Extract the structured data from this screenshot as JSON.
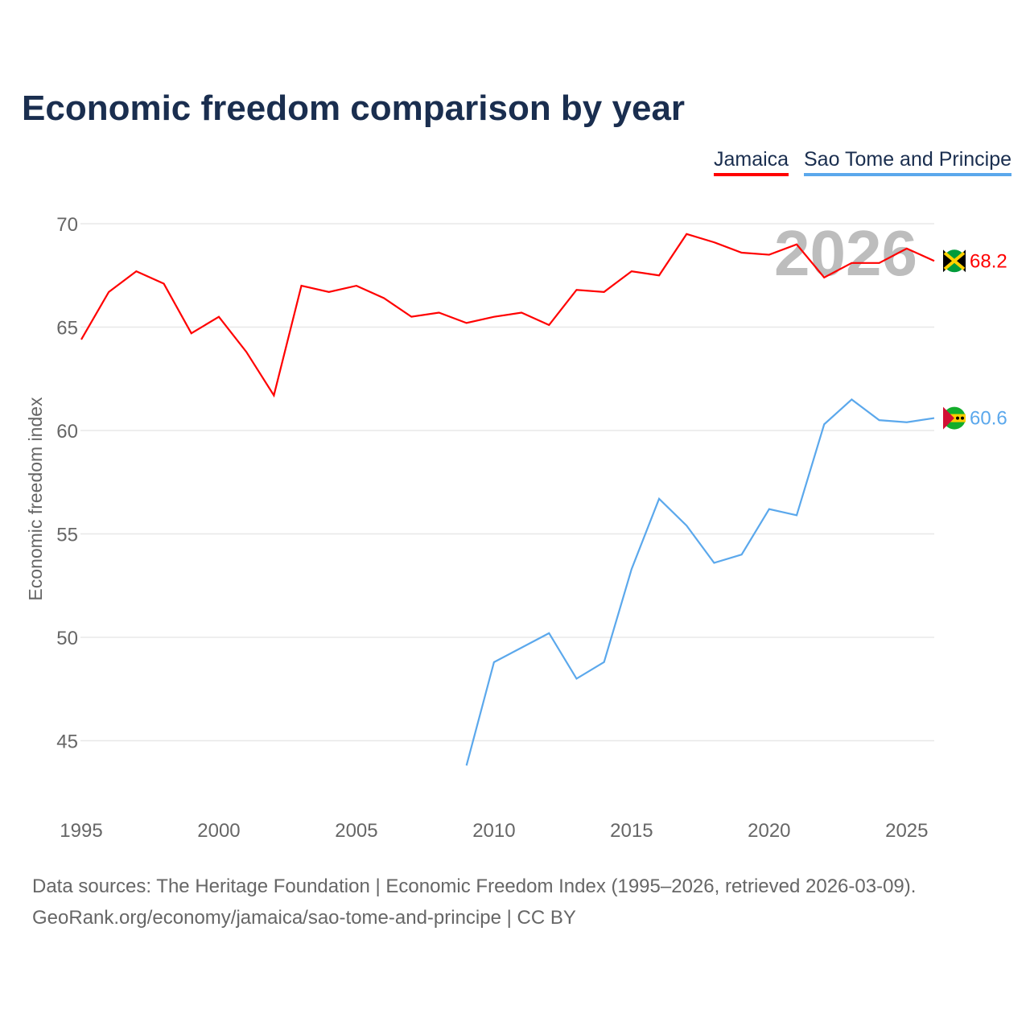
{
  "title": "Economic freedom comparison by year",
  "legend": [
    "Jamaica",
    "Sao Tome and Principe"
  ],
  "sources": [
    "Data sources: The Heritage Foundation | Economic Freedom Index (1995–2026, retrieved 2026-03-09).",
    "GeoRank.org/economy/jamaica/sao-tome-and-principe | CC BY"
  ],
  "chart_data": {
    "type": "line",
    "title": "Economic freedom comparison by year",
    "ylabel": "Economic freedom index",
    "xlabel": "",
    "xlim": [
      1995,
      2026
    ],
    "ylim": [
      42,
      71.5
    ],
    "xticks": [
      "1995",
      "2000",
      "2005",
      "2010",
      "2015",
      "2020",
      "2025"
    ],
    "yticks": [
      "45",
      "50",
      "55",
      "60",
      "65",
      "70"
    ],
    "year_watermark": "2026",
    "grid": true,
    "legend_position": "top-right",
    "series": [
      {
        "name": "Jamaica",
        "color": "#ff0000",
        "end_label": "68.2",
        "x": [
          1995,
          1996,
          1997,
          1998,
          1999,
          2000,
          2001,
          2002,
          2003,
          2004,
          2005,
          2006,
          2007,
          2008,
          2009,
          2010,
          2011,
          2012,
          2013,
          2014,
          2015,
          2016,
          2017,
          2018,
          2019,
          2020,
          2021,
          2022,
          2023,
          2024,
          2025,
          2026
        ],
        "values": [
          64.4,
          66.7,
          67.7,
          67.1,
          64.7,
          65.5,
          63.8,
          61.7,
          67.0,
          66.7,
          67.0,
          66.4,
          65.5,
          65.7,
          65.2,
          65.5,
          65.7,
          65.1,
          66.8,
          66.7,
          67.7,
          67.5,
          69.5,
          69.1,
          68.6,
          68.5,
          69.0,
          67.4,
          68.1,
          68.1,
          68.8,
          68.2
        ]
      },
      {
        "name": "Sao Tome and Principe",
        "color": "#5ba8ec",
        "end_label": "60.6",
        "x": [
          2009,
          2010,
          2011,
          2012,
          2013,
          2014,
          2015,
          2016,
          2017,
          2018,
          2019,
          2020,
          2021,
          2022,
          2023,
          2024,
          2025,
          2026
        ],
        "values": [
          43.8,
          48.8,
          49.5,
          50.2,
          48.0,
          48.8,
          53.3,
          56.7,
          55.4,
          53.6,
          54.0,
          56.2,
          55.9,
          60.3,
          61.5,
          60.5,
          60.4,
          60.6
        ]
      }
    ]
  }
}
